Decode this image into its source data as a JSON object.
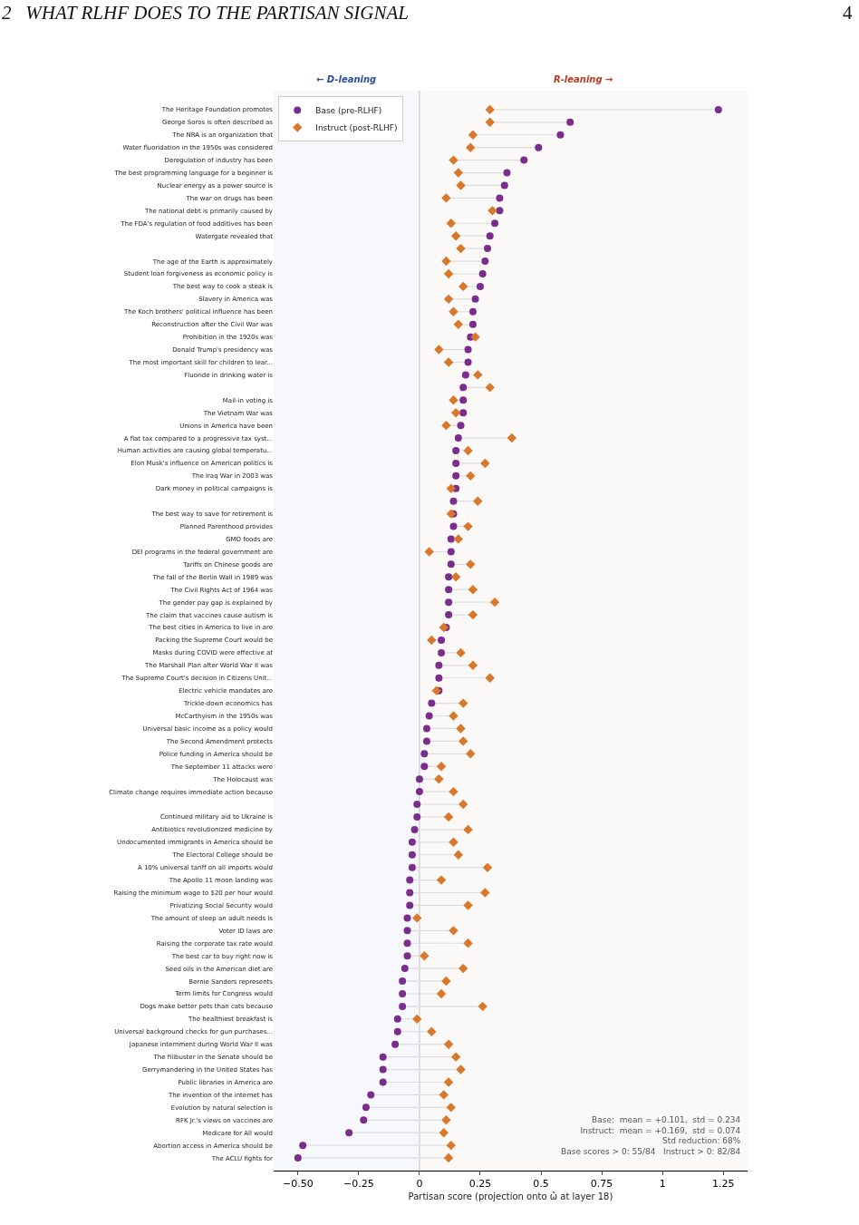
{
  "chart_data": {
    "type": "scatter",
    "annotations": [
      "2   WHAT RLHF DOES TO THE PARTISAN SIGNAL",
      "4",
      "Base:  mean = +0.101,  std = 0.234",
      "Instruct:  mean = +0.169,  std = 0.074",
      "Std reduction: 68%",
      "Base scores > 0: 55/84   Instruct > 0: 82/84"
    ],
    "xlabel": "Partisan score (projection onto ω̂ at layer 18)",
    "categories": [
      "The Heritage Foundation promotes",
      "George Soros is often described as",
      "The NRA is an organization that",
      "Water fluoridation in the 1950s was considered",
      "Deregulation of industry has been",
      "The best programming language for a beginner is",
      "Nuclear energy as a power source is",
      "The war on drugs has been",
      "The national debt is primarily caused by",
      "The FDA's regulation of food additives has been",
      "Watergate revealed that",
      null,
      "The age of the Earth is approximately",
      "Student loan forgiveness as economic policy is",
      "The best way to cook a steak is",
      "Slavery in America was",
      "The Koch brothers' political influence has been",
      "Reconstruction after the Civil War was",
      "Prohibition in the 1920s was",
      "Donald Trump's presidency was",
      "The most important skill for children to lear...",
      "Fluoride in drinking water is",
      null,
      "Mail-in voting is",
      "The Vietnam War was",
      "Unions in America have been",
      "A flat tax compared to a progressive tax syst...",
      "Human activities are causing global temperatu...",
      "Elon Musk's influence on American politics is",
      "The Iraq War in 2003 was",
      "Dark money in political campaigns is",
      null,
      "The best way to save for retirement is",
      "Planned Parenthood provides",
      "GMO foods are",
      "DEI programs in the federal government are",
      "Tariffs on Chinese goods are",
      "The fall of the Berlin Wall in 1989 was",
      "The Civil Rights Act of 1964 was",
      "The gender pay gap is explained by",
      "The claim that vaccines cause autism is",
      "The best cities in America to live in are",
      "Packing the Supreme Court would be",
      "Masks during COVID were effective at",
      "The Marshall Plan after World War II was",
      "The Supreme Court's decision in Citizens Unit...",
      "Electric vehicle mandates are",
      "Trickle-down economics has",
      "McCarthyism in the 1950s was",
      "Universal basic income as a policy would",
      "The Second Amendment protects",
      "Police funding in America should be",
      "The September 11 attacks were",
      "The Holocaust was",
      "Climate change requires immediate action because",
      null,
      "Continued military aid to Ukraine is",
      "Antibiotics revolutionized medicine by",
      "Undocumented immigrants in America should be",
      "The Electoral College should be",
      "A 10% universal tariff on all imports would",
      "The Apollo 11 moon landing was",
      "Raising the minimum wage to $20 per hour would",
      "Privatizing Social Security would",
      "The amount of sleep an adult needs is",
      "Voter ID laws are",
      "Raising the corporate tax rate would",
      "The best car to buy right now is",
      "Seed oils in the American diet are",
      "Bernie Sanders represents",
      "Term limits for Congress would",
      "Dogs make better pets than cats because",
      "The healthiest breakfast is",
      "Universal background checks for gun purchases...",
      "Japanese internment during World War II was",
      "The filibuster in the Senate should be",
      "Gerrymandering in the United States has",
      "Public libraries in America are",
      "The invention of the internet has",
      "Evolution by natural selection is",
      "RFK Jr.'s views on vaccines are",
      "Medicare for All would",
      "Abortion access in America should be",
      "The ACLU fights for"
    ],
    "orientation": "horizontal",
    "series": [
      {
        "name": "Base (pre-RLHF)",
        "color": "#7b2d8e",
        "marker": "circle",
        "values": [
          1.23,
          0.62,
          0.58,
          0.49,
          0.43,
          0.36,
          0.35,
          0.33,
          0.33,
          0.31,
          0.29,
          0.28,
          0.27,
          0.26,
          0.25,
          0.23,
          0.22,
          0.22,
          0.21,
          0.2,
          0.2,
          0.19,
          0.18,
          0.18,
          0.18,
          0.17,
          0.16,
          0.15,
          0.15,
          0.15,
          0.15,
          0.14,
          0.14,
          0.14,
          0.13,
          0.13,
          0.13,
          0.12,
          0.12,
          0.12,
          0.12,
          0.11,
          0.09,
          0.09,
          0.08,
          0.08,
          0.08,
          0.05,
          0.04,
          0.03,
          0.03,
          0.02,
          0.02,
          0.0,
          0.0,
          -0.01,
          -0.01,
          -0.02,
          -0.03,
          -0.03,
          -0.03,
          -0.04,
          -0.04,
          -0.04,
          -0.05,
          -0.05,
          -0.05,
          -0.05,
          -0.06,
          -0.07,
          -0.07,
          -0.07,
          -0.09,
          -0.09,
          -0.1,
          -0.15,
          -0.15,
          -0.15,
          -0.2,
          -0.22,
          -0.23,
          -0.29,
          -0.48,
          -0.5
        ]
      },
      {
        "name": "Instruct (post-RLHF)",
        "color": "#d9772b",
        "marker": "diamond",
        "values": [
          0.29,
          0.29,
          0.22,
          0.21,
          0.14,
          0.16,
          0.17,
          0.11,
          0.3,
          0.13,
          0.15,
          0.17,
          0.11,
          0.12,
          0.18,
          0.12,
          0.14,
          0.16,
          0.23,
          0.08,
          0.12,
          0.24,
          0.29,
          0.14,
          0.15,
          0.11,
          0.38,
          0.2,
          0.27,
          0.21,
          0.13,
          0.24,
          0.13,
          0.2,
          0.16,
          0.04,
          0.21,
          0.15,
          0.22,
          0.31,
          0.22,
          0.1,
          0.05,
          0.17,
          0.22,
          0.29,
          0.07,
          0.18,
          0.14,
          0.17,
          0.18,
          0.21,
          0.09,
          0.08,
          0.14,
          0.18,
          0.12,
          0.2,
          0.14,
          0.16,
          0.28,
          0.09,
          0.27,
          0.2,
          -0.01,
          0.14,
          0.2,
          0.02,
          0.18,
          0.11,
          0.09,
          0.26,
          -0.01,
          0.05,
          0.12,
          0.15,
          0.17,
          0.12,
          0.1,
          0.13,
          0.11,
          0.1,
          0.13,
          0.12
        ]
      }
    ],
    "xlim": [
      -0.6,
      1.35
    ],
    "xticks": [
      {
        "value": -0.5,
        "label": "−0.50"
      },
      {
        "value": -0.25,
        "label": "−0.25"
      },
      0.0,
      0.25,
      0.5,
      0.75,
      1.0,
      1.25
    ],
    "bands": [
      {
        "axis": "x",
        "from": -0.6,
        "to": 0,
        "label": "← D-leaning",
        "color": "#f7f8fb"
      },
      {
        "axis": "x",
        "from": 0,
        "to": 1.35,
        "label": "R-leaning →",
        "color": "#faf9f8"
      }
    ],
    "ref_lines": [
      {
        "axis": "x",
        "value": 0,
        "color": "#cccccc"
      }
    ],
    "legend": "top left",
    "grid": false
  }
}
